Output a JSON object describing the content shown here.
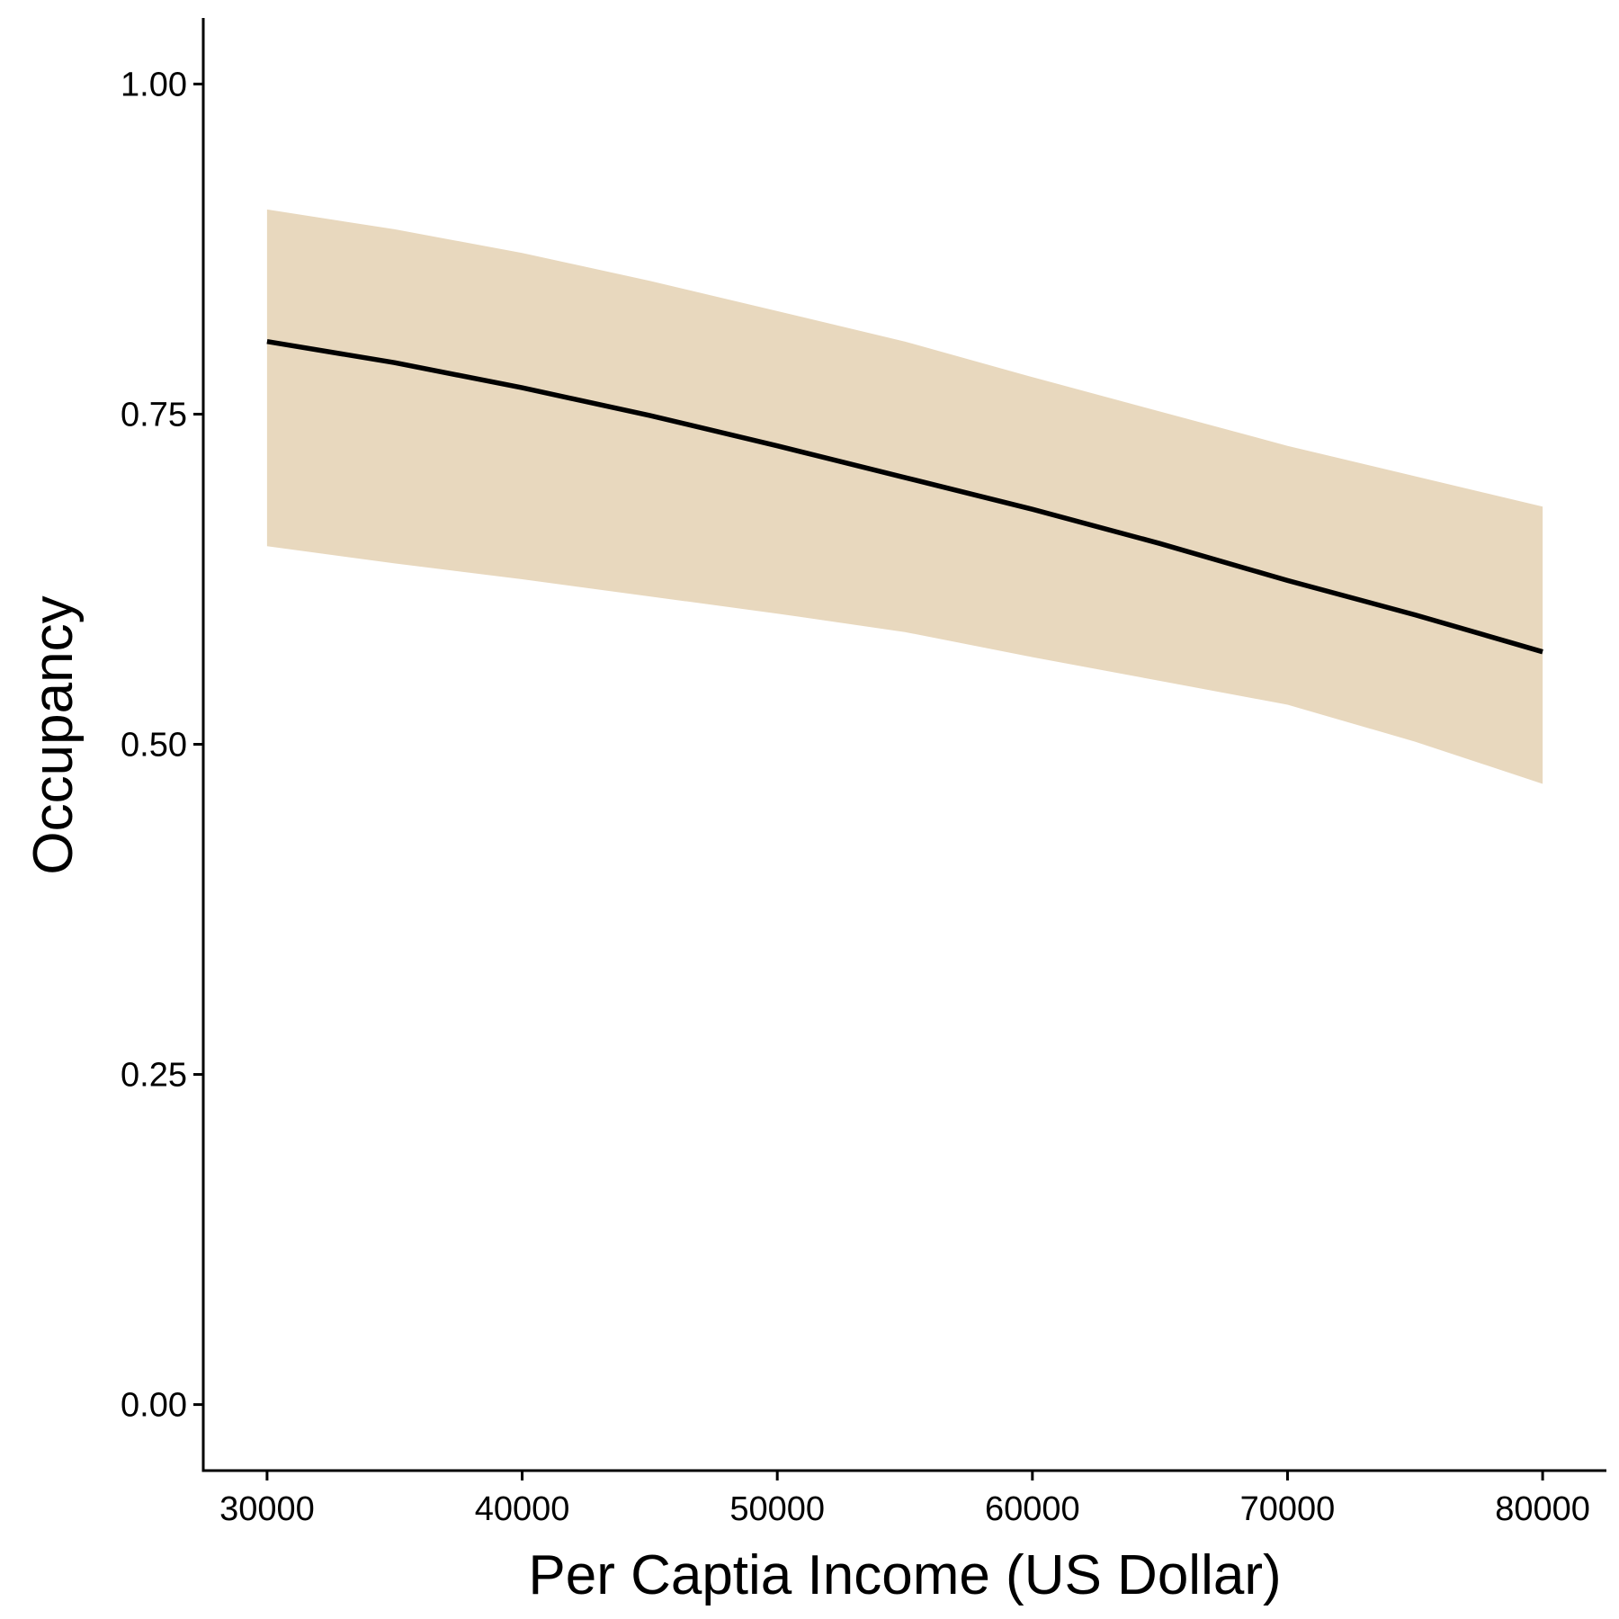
{
  "chart_data": {
    "type": "line",
    "title": "",
    "xlabel": "Per Captia Income (US Dollar)",
    "ylabel": "Occupancy",
    "xlim": [
      27500,
      82500
    ],
    "ylim": [
      -0.05,
      1.05
    ],
    "x_ticks": [
      30000,
      40000,
      50000,
      60000,
      70000,
      80000
    ],
    "x_tick_labels": [
      "30000",
      "40000",
      "50000",
      "60000",
      "70000",
      "80000"
    ],
    "y_ticks": [
      0,
      0.25,
      0.5,
      0.75,
      1.0
    ],
    "y_tick_labels": [
      "0.00",
      "0.25",
      "0.50",
      "0.75",
      "1.00"
    ],
    "grid": false,
    "colors": {
      "line": "#000000",
      "band": "#e8d8be",
      "axis": "#000000"
    },
    "series": [
      {
        "x": [
          30000,
          35000,
          40000,
          45000,
          50000,
          55000,
          60000,
          65000,
          70000,
          75000,
          80000
        ],
        "y": [
          0.805,
          0.789,
          0.77,
          0.749,
          0.726,
          0.702,
          0.678,
          0.652,
          0.624,
          0.598,
          0.57
        ],
        "lower": [
          0.65,
          0.637,
          0.625,
          0.612,
          0.599,
          0.585,
          0.566,
          0.548,
          0.53,
          0.502,
          0.47
        ],
        "upper": [
          0.905,
          0.89,
          0.872,
          0.851,
          0.828,
          0.805,
          0.778,
          0.752,
          0.726,
          0.703,
          0.68
        ]
      }
    ]
  }
}
